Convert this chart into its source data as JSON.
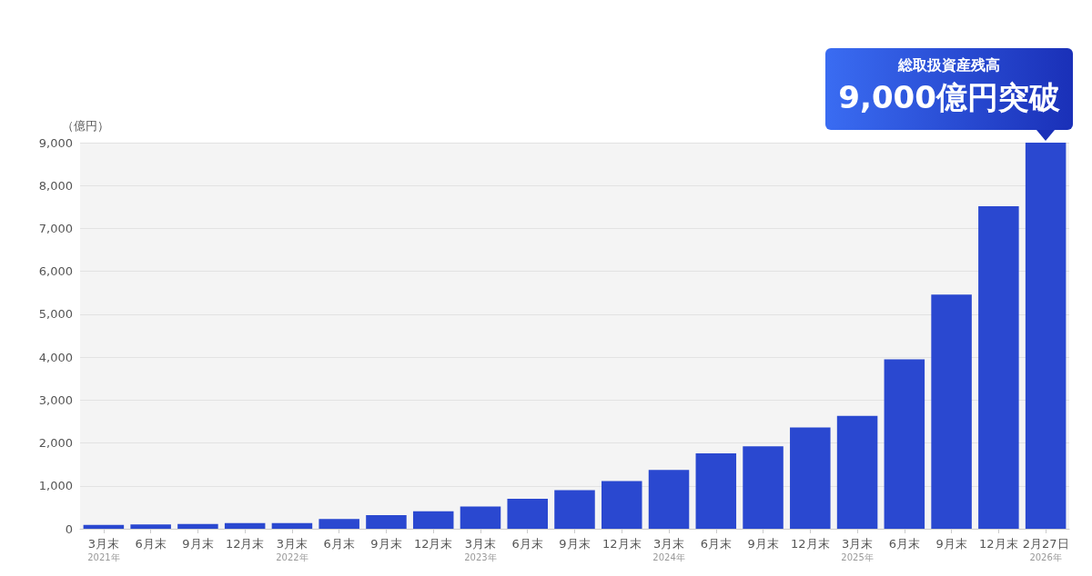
{
  "chart_data": {
    "type": "bar",
    "ylabel": "（億円）",
    "categories": [
      "3月末\n2021年",
      "6月末",
      "9月末",
      "12月末",
      "3月末\n2022年",
      "6月末",
      "9月末",
      "12月末",
      "3月末\n2023年",
      "6月末",
      "9月末",
      "12月末",
      "3月末\n2024年",
      "6月末",
      "9月末",
      "12月末",
      "3月末\n2025年",
      "6月末",
      "9月末",
      "12月末",
      "2月27日\n2026年"
    ],
    "values": [
      90,
      100,
      110,
      130,
      130,
      230,
      320,
      410,
      520,
      700,
      900,
      1110,
      1370,
      1760,
      1920,
      2360,
      2630,
      3950,
      5460,
      7520,
      9000
    ],
    "color": "#2a48d0",
    "ylim": [
      0,
      9000
    ],
    "yticks": [
      0,
      {
        "value": 1000,
        "label": "1,000"
      },
      {
        "value": 2000,
        "label": "2,000"
      },
      {
        "value": 3000,
        "label": "3,000"
      },
      {
        "value": 4000,
        "label": "4,000"
      },
      {
        "value": 5000,
        "label": "5,000"
      },
      {
        "value": 6000,
        "label": "6,000"
      },
      {
        "value": 7000,
        "label": "7,000"
      },
      {
        "value": 8000,
        "label": "8,000"
      },
      {
        "value": 9000,
        "label": "9,000"
      }
    ],
    "grid": "y",
    "annotations": [
      {
        "text": "総取扱資産残高\n9,000億円突破",
        "x": "2月27日\n2026年",
        "y": 9000
      }
    ]
  }
}
